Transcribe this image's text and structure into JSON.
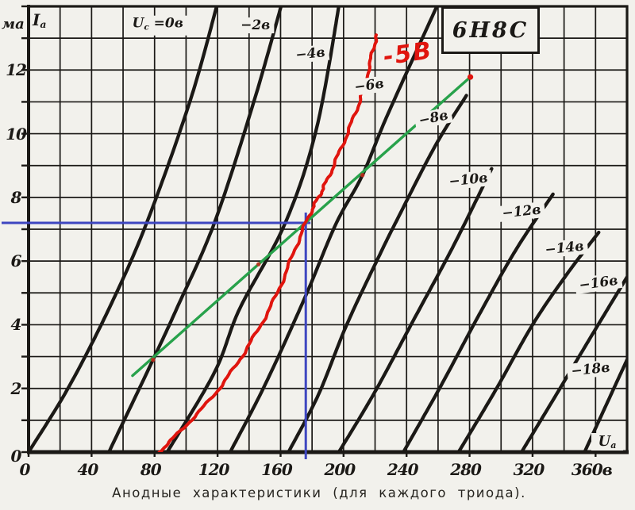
{
  "figure": {
    "caption": "Анодные характеристики (для каждого триода)."
  },
  "y_axis": {
    "unit": "ма",
    "symbol": "I",
    "symbol_sub": "a"
  },
  "x_axis": {
    "symbol": "U",
    "symbol_sub": "a"
  },
  "uc_label": {
    "symbol": "U",
    "symbol_sub": "c",
    "rest": " =0в"
  },
  "colors": {
    "ink": "#1b1916",
    "paper": "#f2f1ec",
    "red": "#e0150e",
    "green": "#28a24b",
    "blue": "#3e46c0",
    "mark_red": "#c8291b"
  },
  "chart_data": {
    "type": "line",
    "title": "6Н8С",
    "caption": "Анодные характеристики (для каждого триода).",
    "xlabel": "Ua, в",
    "ylabel": "Ia, ма",
    "xlim": [
      0,
      380
    ],
    "ylim": [
      0,
      14
    ],
    "x_grid_step": 20,
    "y_grid_step": 1,
    "grid": true,
    "x_ticks": {
      "values": [
        0,
        40,
        80,
        120,
        160,
        200,
        240,
        280,
        320,
        360
      ],
      "labels": [
        "0",
        "40",
        "80",
        "120",
        "160",
        "200",
        "240",
        "280",
        "320",
        "360в"
      ]
    },
    "y_ticks": {
      "values": [
        0,
        2,
        4,
        6,
        8,
        10,
        12
      ],
      "labels": [
        "0",
        "2",
        "4",
        "6",
        "8",
        "10",
        "12"
      ]
    },
    "series": [
      {
        "name": "Uc=0",
        "label": "Uc =0в",
        "color": "ink",
        "has_template_label": true,
        "label_pos": [
          82,
          13.4
        ],
        "label_rot": 0,
        "points": [
          [
            0,
            0
          ],
          [
            25,
            2
          ],
          [
            51,
            4.5
          ],
          [
            75,
            7.2
          ],
          [
            103,
            11.1
          ],
          [
            121,
            14.3
          ]
        ]
      },
      {
        "name": "Uc=-2",
        "label": "−2в",
        "color": "ink",
        "label_pos": [
          144,
          13.4
        ],
        "label_rot": 0,
        "points": [
          [
            51,
            0
          ],
          [
            79,
            2.9
          ],
          [
            94,
            4.5
          ],
          [
            118,
            7.2
          ],
          [
            143,
            11
          ],
          [
            162,
            14.3
          ]
        ]
      },
      {
        "name": "Uc=-4",
        "label": "−4в",
        "color": "ink",
        "label_pos": [
          179,
          12.5
        ],
        "label_rot": -6,
        "points": [
          [
            88,
            0
          ],
          [
            118,
            2.5
          ],
          [
            134,
            4.5
          ],
          [
            163,
            7.2
          ],
          [
            183,
            10.2
          ],
          [
            198,
            14.3
          ]
        ]
      },
      {
        "name": "Uc=-6",
        "label": "−6в",
        "color": "ink",
        "label_pos": [
          216,
          11.5
        ],
        "label_rot": -8,
        "points": [
          [
            128,
            0
          ],
          [
            150,
            2.1
          ],
          [
            175,
            4.8
          ],
          [
            195,
            7.15
          ],
          [
            212,
            8.7
          ],
          [
            228,
            10.6
          ],
          [
            262,
            14.3
          ]
        ]
      },
      {
        "name": "Uc=-8",
        "label": "−8в",
        "color": "ink",
        "label_pos": [
          257,
          10.5
        ],
        "label_rot": -12,
        "points": [
          [
            165,
            0
          ],
          [
            184,
            1.8
          ],
          [
            202,
            4
          ],
          [
            222,
            6.1
          ],
          [
            234,
            7.3
          ],
          [
            258,
            9.6
          ],
          [
            278,
            11.2
          ]
        ]
      },
      {
        "name": "Uc=-10",
        "label": "−10в",
        "color": "ink",
        "label_pos": [
          279,
          8.55
        ],
        "label_rot": -6,
        "points": [
          [
            197,
            0
          ],
          [
            220,
            1.9
          ],
          [
            245,
            4.2
          ],
          [
            270,
            6.5
          ],
          [
            294,
            8.9
          ]
        ]
      },
      {
        "name": "Uc=-12",
        "label": "−12в",
        "color": "ink",
        "label_pos": [
          313,
          7.55
        ],
        "label_rot": -6,
        "points": [
          [
            238,
            0
          ],
          [
            262,
            2.1
          ],
          [
            287,
            4.4
          ],
          [
            310,
            6.4
          ],
          [
            333,
            8.1
          ]
        ]
      },
      {
        "name": "Uc=-14",
        "label": "−14в",
        "color": "ink",
        "label_pos": [
          340,
          6.4
        ],
        "label_rot": -6,
        "points": [
          [
            273,
            0
          ],
          [
            296,
            1.9
          ],
          [
            320,
            4
          ],
          [
            342,
            5.6
          ],
          [
            362,
            6.9
          ]
        ]
      },
      {
        "name": "Uc=-16",
        "label": "−16в",
        "color": "ink",
        "label_pos": [
          362,
          5.3
        ],
        "label_rot": -8,
        "points": [
          [
            313,
            0
          ],
          [
            335,
            1.8
          ],
          [
            358,
            3.7
          ],
          [
            380,
            5.5
          ]
        ]
      },
      {
        "name": "Uc=-18",
        "label": "−18в",
        "color": "ink",
        "label_pos": [
          357,
          2.6
        ],
        "label_rot": -6,
        "points": [
          [
            353,
            0
          ],
          [
            366,
            1.4
          ],
          [
            380,
            2.9
          ]
        ]
      },
      {
        "name": "Uc=-5 (hand-drawn)",
        "label": "-5В",
        "color": "red",
        "hand_drawn": true,
        "label_pos": [
          241,
          12.5
        ],
        "label_rot": -8,
        "points": [
          [
            83,
            0
          ],
          [
            121,
            2
          ],
          [
            153,
            4.5
          ],
          [
            176,
            7.2
          ],
          [
            191,
            8.7
          ],
          [
            210,
            11
          ],
          [
            221,
            13.1
          ]
        ]
      }
    ],
    "load_line": {
      "color": "green",
      "from": [
        66,
        2.4
      ],
      "to": [
        280.5,
        11.78
      ],
      "end_dot": [
        280.5,
        11.78
      ],
      "intersection_marks": [
        [
          79,
          2.9
        ],
        [
          146,
          5.9
        ],
        [
          212,
          8.7
        ]
      ]
    },
    "operating_point": {
      "ua": 176,
      "ia": 7.2,
      "color": "blue"
    }
  }
}
